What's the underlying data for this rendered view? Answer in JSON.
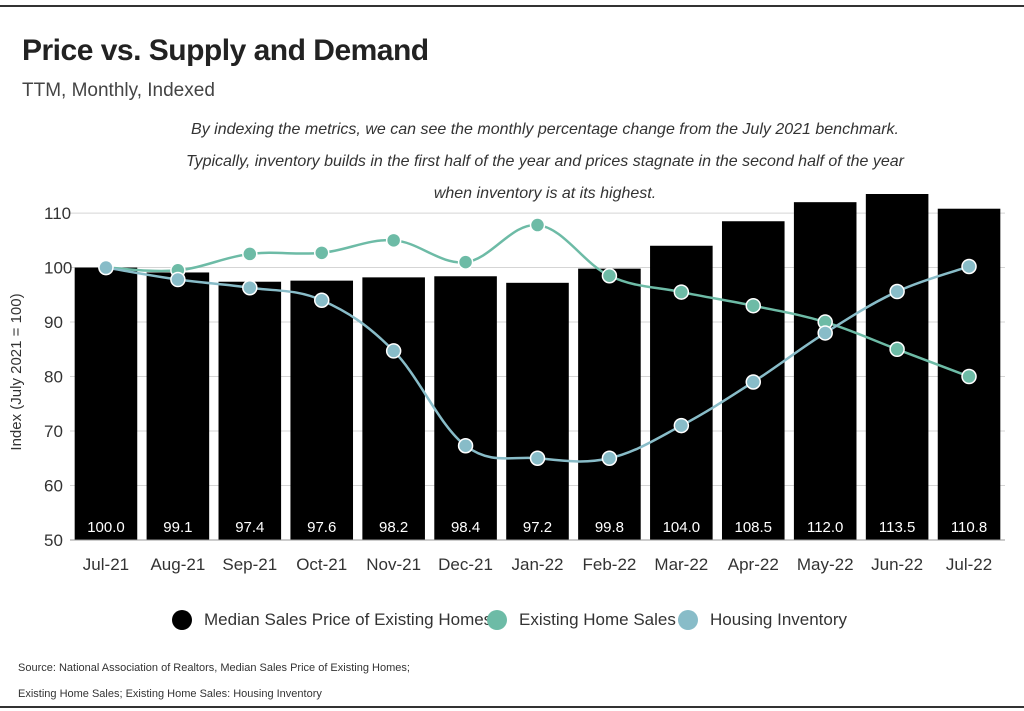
{
  "header": {
    "title": "Price vs. Supply and Demand",
    "subtitle": "TTM, Monthly, Indexed",
    "note_lines": [
      "By indexing the metrics, we can see the monthly percentage change from the July 2021 benchmark.",
      "Typically, inventory builds in the first half of the year and prices stagnate in the second half of the year",
      "when inventory is at its highest."
    ]
  },
  "chart_data": {
    "type": "bar",
    "ylabel": "Index (July 2021 = 100)",
    "xlabel": "",
    "ylim": [
      50,
      113.5
    ],
    "yticks": [
      50,
      60,
      70,
      80,
      90,
      100,
      110
    ],
    "grid": true,
    "categories": [
      "Jul-21",
      "Aug-21",
      "Sep-21",
      "Oct-21",
      "Nov-21",
      "Dec-21",
      "Jan-22",
      "Feb-22",
      "Mar-22",
      "Apr-22",
      "May-22",
      "Jun-22",
      "Jul-22"
    ],
    "series": [
      {
        "name": "Median Sales Price of Existing Homes",
        "type": "bar",
        "color": "#000000",
        "values": [
          100.0,
          99.1,
          97.4,
          97.6,
          98.2,
          98.4,
          97.2,
          99.8,
          104.0,
          108.5,
          112.0,
          113.5,
          110.8
        ],
        "labels": [
          "100.0",
          "99.1",
          "97.4",
          "97.6",
          "98.2",
          "98.4",
          "97.2",
          "99.8",
          "104.0",
          "108.5",
          "112.0",
          "113.5",
          "110.8"
        ]
      },
      {
        "name": "Existing Home Sales",
        "type": "line",
        "color": "#6dbba6",
        "values": [
          100,
          99.5,
          102.5,
          102.7,
          105,
          101,
          107.8,
          98.5,
          95.5,
          93,
          90,
          85,
          80
        ]
      },
      {
        "name": "Housing Inventory",
        "type": "line",
        "color": "#88bcc8",
        "values": [
          100,
          97.8,
          96.3,
          94,
          84.7,
          67.3,
          65,
          65,
          71,
          79,
          88,
          95.6,
          100.2
        ]
      }
    ],
    "legend_position": "bottom"
  },
  "legend": [
    {
      "label": "Median Sales Price of Existing Homes",
      "color": "#000000"
    },
    {
      "label": "Existing Home Sales",
      "color": "#6dbba6"
    },
    {
      "label": "Housing Inventory",
      "color": "#88bcc8"
    }
  ],
  "source": {
    "line1": "Source:  National Association of Realtors, Median Sales Price of Existing Homes;",
    "line2": "Existing Home Sales; Existing Home Sales: Housing Inventory"
  }
}
